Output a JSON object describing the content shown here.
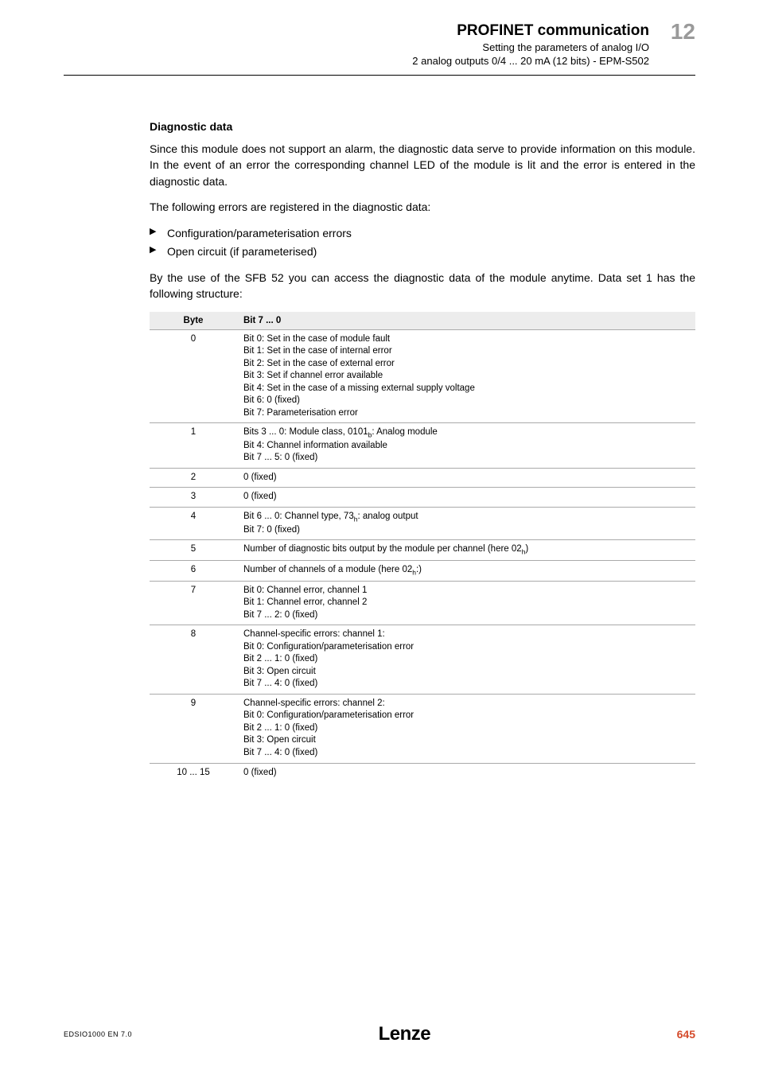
{
  "header": {
    "main_title": "PROFINET communication",
    "chapter_no": "12",
    "sub1": "Setting the parameters of analog I/O",
    "sub2": "2 analog outputs 0/4 ... 20 mA (12 bits) - EPM-S502"
  },
  "section": {
    "title": "Diagnostic data",
    "para1": "Since this module does not support an alarm, the diagnostic data serve to provide information on this module. In the event of an error the corresponding channel LED of the module is lit and the error is entered in the diagnostic data.",
    "para2": "The following errors are registered in the diagnostic data:",
    "bullets": [
      "Configuration/parameterisation errors",
      "Open circuit (if parameterised)"
    ],
    "para3": "By the use of the SFB 52 you can access the diagnostic data of the module anytime. Data set 1 has the following structure:"
  },
  "table": {
    "head_byte": "Byte",
    "head_bits": "Bit 7 ... 0",
    "rows": [
      {
        "byte": "0",
        "lines": [
          "Bit 0: Set in the case of module fault",
          "Bit 1: Set in the case of internal error",
          "Bit 2: Set in the case of external error",
          "Bit 3: Set if channel error available",
          "Bit 4: Set in the case of a missing external supply voltage",
          "Bit 6: 0 (fixed)",
          "Bit 7: Parameterisation error"
        ]
      },
      {
        "byte": "1",
        "lines": [
          "Bits 3 ... 0: Module class, 0101_{b}: Analog module",
          "Bit 4: Channel information available",
          "Bit 7 ... 5: 0 (fixed)"
        ]
      },
      {
        "byte": "2",
        "lines": [
          "0 (fixed)"
        ]
      },
      {
        "byte": "3",
        "lines": [
          "0 (fixed)"
        ]
      },
      {
        "byte": "4",
        "lines": [
          "Bit 6 ... 0: Channel type, 73_{h}: analog output",
          "Bit 7: 0 (fixed)"
        ]
      },
      {
        "byte": "5",
        "lines": [
          "Number of diagnostic bits output by the module per channel (here 02_{h})"
        ]
      },
      {
        "byte": "6",
        "lines": [
          "Number of channels of a module (here 02_{h}:)"
        ]
      },
      {
        "byte": "7",
        "lines": [
          "Bit 0: Channel error, channel 1",
          "Bit 1: Channel error, channel 2",
          "Bit 7 ... 2: 0 (fixed)"
        ]
      },
      {
        "byte": "8",
        "lines": [
          "Channel-specific errors: channel 1:",
          "Bit 0: Configuration/parameterisation error",
          "Bit 2 ... 1: 0 (fixed)",
          "Bit 3: Open circuit",
          "Bit 7 ... 4: 0 (fixed)"
        ]
      },
      {
        "byte": "9",
        "lines": [
          "Channel-specific errors: channel 2:",
          "Bit 0: Configuration/parameterisation error",
          "Bit 2 ... 1: 0 (fixed)",
          "Bit 3: Open circuit",
          "Bit 7 ... 4: 0 (fixed)"
        ]
      },
      {
        "byte": "10 ... 15",
        "lines": [
          "0 (fixed)"
        ]
      }
    ]
  },
  "footer": {
    "left": "EDSIO1000 EN 7.0",
    "logo": "Lenze",
    "page_no": "645"
  },
  "colors": {
    "chapter_grey": "#9a9a9a",
    "accent": "#d44a2a",
    "table_head_bg": "#ececec",
    "table_border": "#aaaaaa"
  }
}
